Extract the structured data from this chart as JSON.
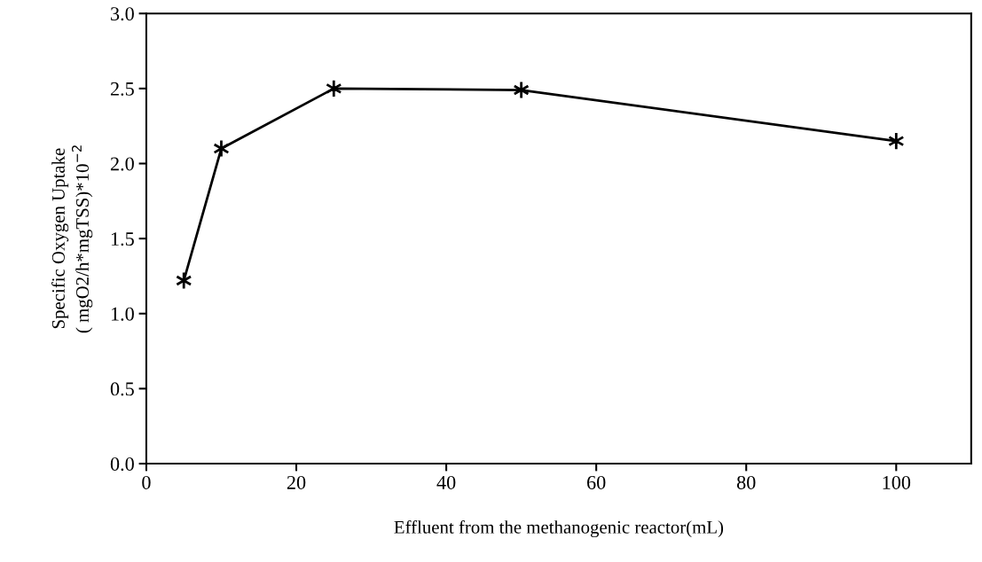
{
  "chart_data": {
    "type": "line",
    "xlabel": "Effluent from the methanogenic reactor(mL)",
    "ylabel": "Specific Oxygen Uptake\n( mgO2/h*mgTSS)*10$^{−2}$",
    "x": [
      5,
      10,
      25,
      50,
      100
    ],
    "series": [
      {
        "color": "#000000",
        "values": [
          1.22,
          2.1,
          2.5,
          2.49,
          2.15
        ]
      }
    ],
    "xlim": [
      0,
      110
    ],
    "xticks": [
      0,
      20,
      40,
      60,
      80,
      100
    ],
    "ylim": [
      0,
      3
    ],
    "yticks": [
      {
        "value": 0,
        "label": "0.0"
      },
      {
        "value": 0.5,
        "label": "0.5"
      },
      {
        "value": 1,
        "label": "1.0"
      },
      {
        "value": 1.5,
        "label": "1.5"
      },
      {
        "value": 2,
        "label": "2.0"
      },
      {
        "value": 2.5,
        "label": "2.5"
      },
      {
        "value": 3,
        "label": "3.0"
      }
    ],
    "grid": false,
    "legend": false,
    "marker": "cross",
    "line_style": "solid"
  }
}
